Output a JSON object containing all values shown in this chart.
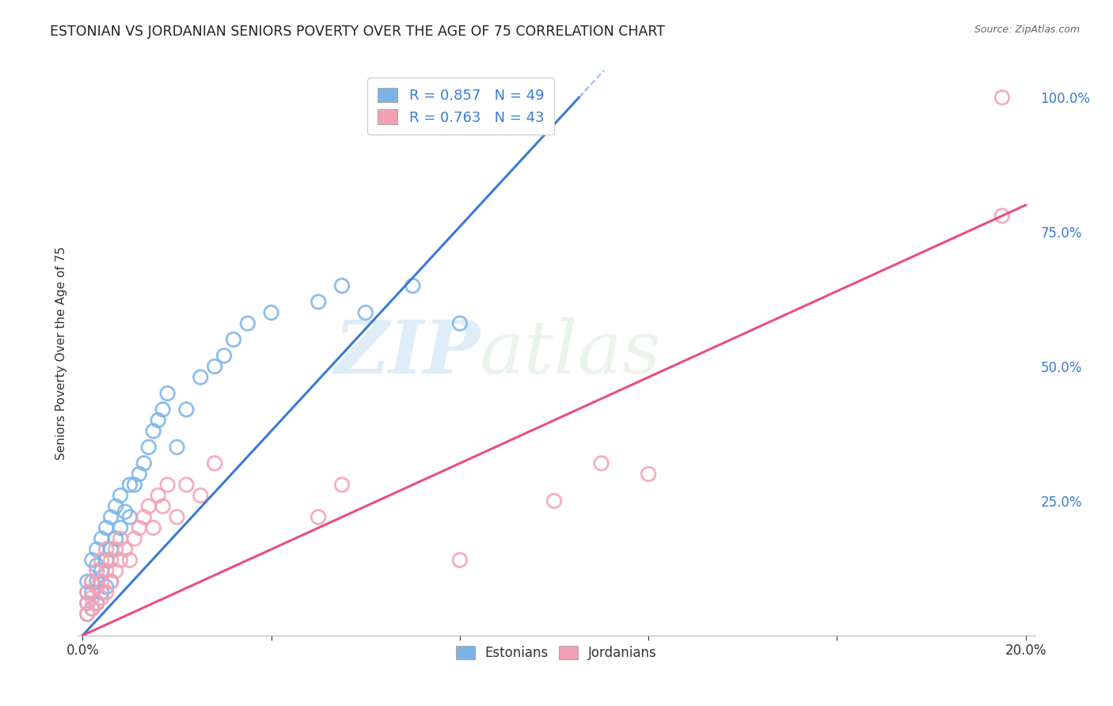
{
  "title": "ESTONIAN VS JORDANIAN SENIORS POVERTY OVER THE AGE OF 75 CORRELATION CHART",
  "source": "Source: ZipAtlas.com",
  "ylabel": "Seniors Poverty Over the Age of 75",
  "xlim": [
    0.0,
    0.2
  ],
  "ylim": [
    0.0,
    1.05
  ],
  "y_ticks_right": [
    0.0,
    0.25,
    0.5,
    0.75,
    1.0
  ],
  "blue_R": 0.857,
  "blue_N": 49,
  "pink_R": 0.763,
  "pink_N": 43,
  "blue_color": "#7ab4e8",
  "pink_color": "#f4a0b4",
  "blue_line_color": "#3a7bd5",
  "pink_line_color": "#e8507a",
  "blue_line_slope": 9.5,
  "blue_line_intercept": 0.0,
  "pink_line_slope": 4.0,
  "pink_line_intercept": 0.0,
  "watermark_zip": "ZIP",
  "watermark_atlas": "atlas",
  "legend_color": "#3a7bd5",
  "estonian_points_x": [
    0.001,
    0.001,
    0.001,
    0.001,
    0.002,
    0.002,
    0.002,
    0.002,
    0.003,
    0.003,
    0.003,
    0.003,
    0.004,
    0.004,
    0.004,
    0.005,
    0.005,
    0.005,
    0.006,
    0.006,
    0.006,
    0.007,
    0.007,
    0.008,
    0.008,
    0.009,
    0.01,
    0.01,
    0.011,
    0.012,
    0.013,
    0.014,
    0.015,
    0.016,
    0.017,
    0.018,
    0.02,
    0.022,
    0.025,
    0.028,
    0.03,
    0.032,
    0.035,
    0.04,
    0.05,
    0.055,
    0.06,
    0.07,
    0.08
  ],
  "estonian_points_y": [
    0.04,
    0.06,
    0.08,
    0.1,
    0.05,
    0.08,
    0.1,
    0.14,
    0.06,
    0.1,
    0.13,
    0.16,
    0.08,
    0.12,
    0.18,
    0.09,
    0.14,
    0.2,
    0.1,
    0.16,
    0.22,
    0.18,
    0.24,
    0.2,
    0.26,
    0.23,
    0.22,
    0.28,
    0.28,
    0.3,
    0.32,
    0.35,
    0.38,
    0.4,
    0.42,
    0.45,
    0.35,
    0.42,
    0.48,
    0.5,
    0.52,
    0.55,
    0.58,
    0.6,
    0.62,
    0.65,
    0.6,
    0.65,
    0.58
  ],
  "jordanian_points_x": [
    0.001,
    0.001,
    0.001,
    0.002,
    0.002,
    0.002,
    0.003,
    0.003,
    0.003,
    0.004,
    0.004,
    0.004,
    0.005,
    0.005,
    0.005,
    0.006,
    0.006,
    0.007,
    0.007,
    0.008,
    0.008,
    0.009,
    0.01,
    0.011,
    0.012,
    0.013,
    0.014,
    0.015,
    0.016,
    0.017,
    0.018,
    0.02,
    0.022,
    0.025,
    0.028,
    0.05,
    0.055,
    0.08,
    0.1,
    0.11,
    0.12,
    0.195,
    0.195
  ],
  "jordanian_points_y": [
    0.04,
    0.06,
    0.08,
    0.05,
    0.07,
    0.1,
    0.06,
    0.09,
    0.12,
    0.07,
    0.1,
    0.14,
    0.08,
    0.12,
    0.16,
    0.1,
    0.14,
    0.12,
    0.16,
    0.14,
    0.18,
    0.16,
    0.14,
    0.18,
    0.2,
    0.22,
    0.24,
    0.2,
    0.26,
    0.24,
    0.28,
    0.22,
    0.28,
    0.26,
    0.32,
    0.22,
    0.28,
    0.14,
    0.25,
    0.32,
    0.3,
    0.78,
    1.0
  ]
}
